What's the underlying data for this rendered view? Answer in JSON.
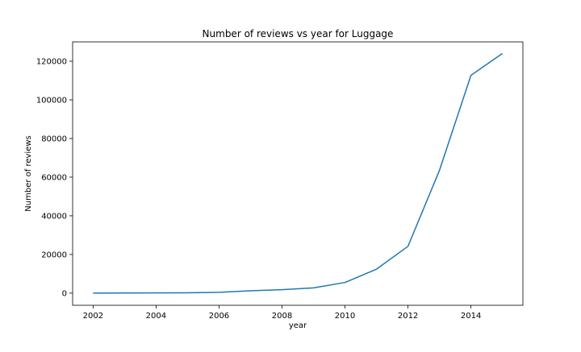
{
  "chart_data": {
    "type": "line",
    "title": "Number of reviews vs year for Luggage",
    "xlabel": "year",
    "ylabel": "Number of reviews",
    "xlim": [
      2001.35,
      2015.65
    ],
    "ylim": [
      -6300,
      130000
    ],
    "xticks": [
      2002,
      2004,
      2006,
      2008,
      2010,
      2012,
      2014
    ],
    "yticks": [
      0,
      20000,
      40000,
      60000,
      80000,
      100000,
      120000
    ],
    "grid": false,
    "legend": "none",
    "series": [
      {
        "x": [
          2002,
          2003,
          2004,
          2005,
          2006,
          2007,
          2008,
          2009,
          2010,
          2011,
          2012,
          2013,
          2014,
          2015
        ],
        "y": [
          0,
          50,
          100,
          150,
          400,
          1200,
          1800,
          2700,
          5500,
          12400,
          24200,
          63500,
          112700,
          124000
        ],
        "color": "#1f77b4"
      }
    ]
  }
}
